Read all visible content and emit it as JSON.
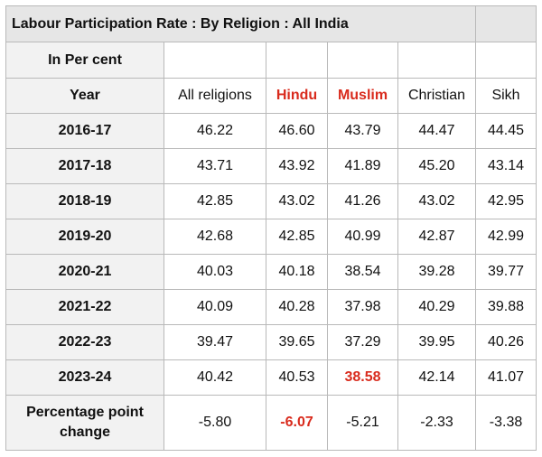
{
  "title": "Labour Participation Rate : By Religion : All India",
  "unit_label": "In Per cent",
  "year_label": "Year",
  "columns": [
    "All religions",
    "Hindu",
    "Muslim",
    "Christian",
    "Sikh"
  ],
  "rows": [
    {
      "year": "2016-17",
      "values": [
        "46.22",
        "46.60",
        "43.79",
        "44.47",
        "44.45"
      ]
    },
    {
      "year": "2017-18",
      "values": [
        "43.71",
        "43.92",
        "41.89",
        "45.20",
        "43.14"
      ]
    },
    {
      "year": "2018-19",
      "values": [
        "42.85",
        "43.02",
        "41.26",
        "43.02",
        "42.95"
      ]
    },
    {
      "year": "2019-20",
      "values": [
        "42.68",
        "42.85",
        "40.99",
        "42.87",
        "42.99"
      ]
    },
    {
      "year": "2020-21",
      "values": [
        "40.03",
        "40.18",
        "38.54",
        "39.28",
        "39.77"
      ]
    },
    {
      "year": "2021-22",
      "values": [
        "40.09",
        "40.28",
        "37.98",
        "40.29",
        "39.88"
      ]
    },
    {
      "year": "2022-23",
      "values": [
        "39.47",
        "39.65",
        "37.29",
        "39.95",
        "40.26"
      ]
    },
    {
      "year": "2023-24",
      "values": [
        "40.42",
        "40.53",
        "38.58",
        "42.14",
        "41.07"
      ]
    }
  ],
  "change_row": {
    "label_line1": "Percentage point",
    "label_line2": "change",
    "values": [
      "-5.80",
      "-6.07",
      "-5.21",
      "-2.33",
      "-3.38"
    ]
  },
  "highlight_color": "#d92b1d"
}
